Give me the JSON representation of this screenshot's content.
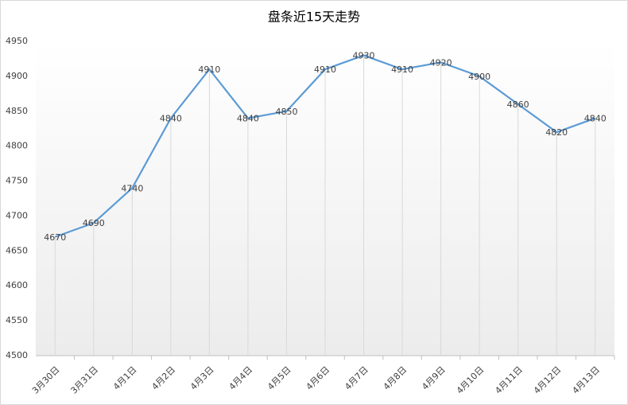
{
  "chart_data": {
    "type": "line",
    "title": "盘条近15天走势",
    "categories": [
      "3月30日",
      "3月31日",
      "4月1日",
      "4月2日",
      "4月3日",
      "4月4日",
      "4月5日",
      "4月6日",
      "4月7日",
      "4月8日",
      "4月9日",
      "4月10日",
      "4月11日",
      "4月12日",
      "4月13日"
    ],
    "values": [
      4670,
      4690,
      4740,
      4840,
      4910,
      4840,
      4850,
      4910,
      4930,
      4910,
      4920,
      4900,
      4860,
      4820,
      4840
    ],
    "color": "#5b9bd5",
    "ylim": [
      4500,
      4950
    ],
    "yticks": [
      4500,
      4550,
      4600,
      4650,
      4700,
      4750,
      4800,
      4850,
      4900,
      4950
    ],
    "drop_lines": true
  }
}
